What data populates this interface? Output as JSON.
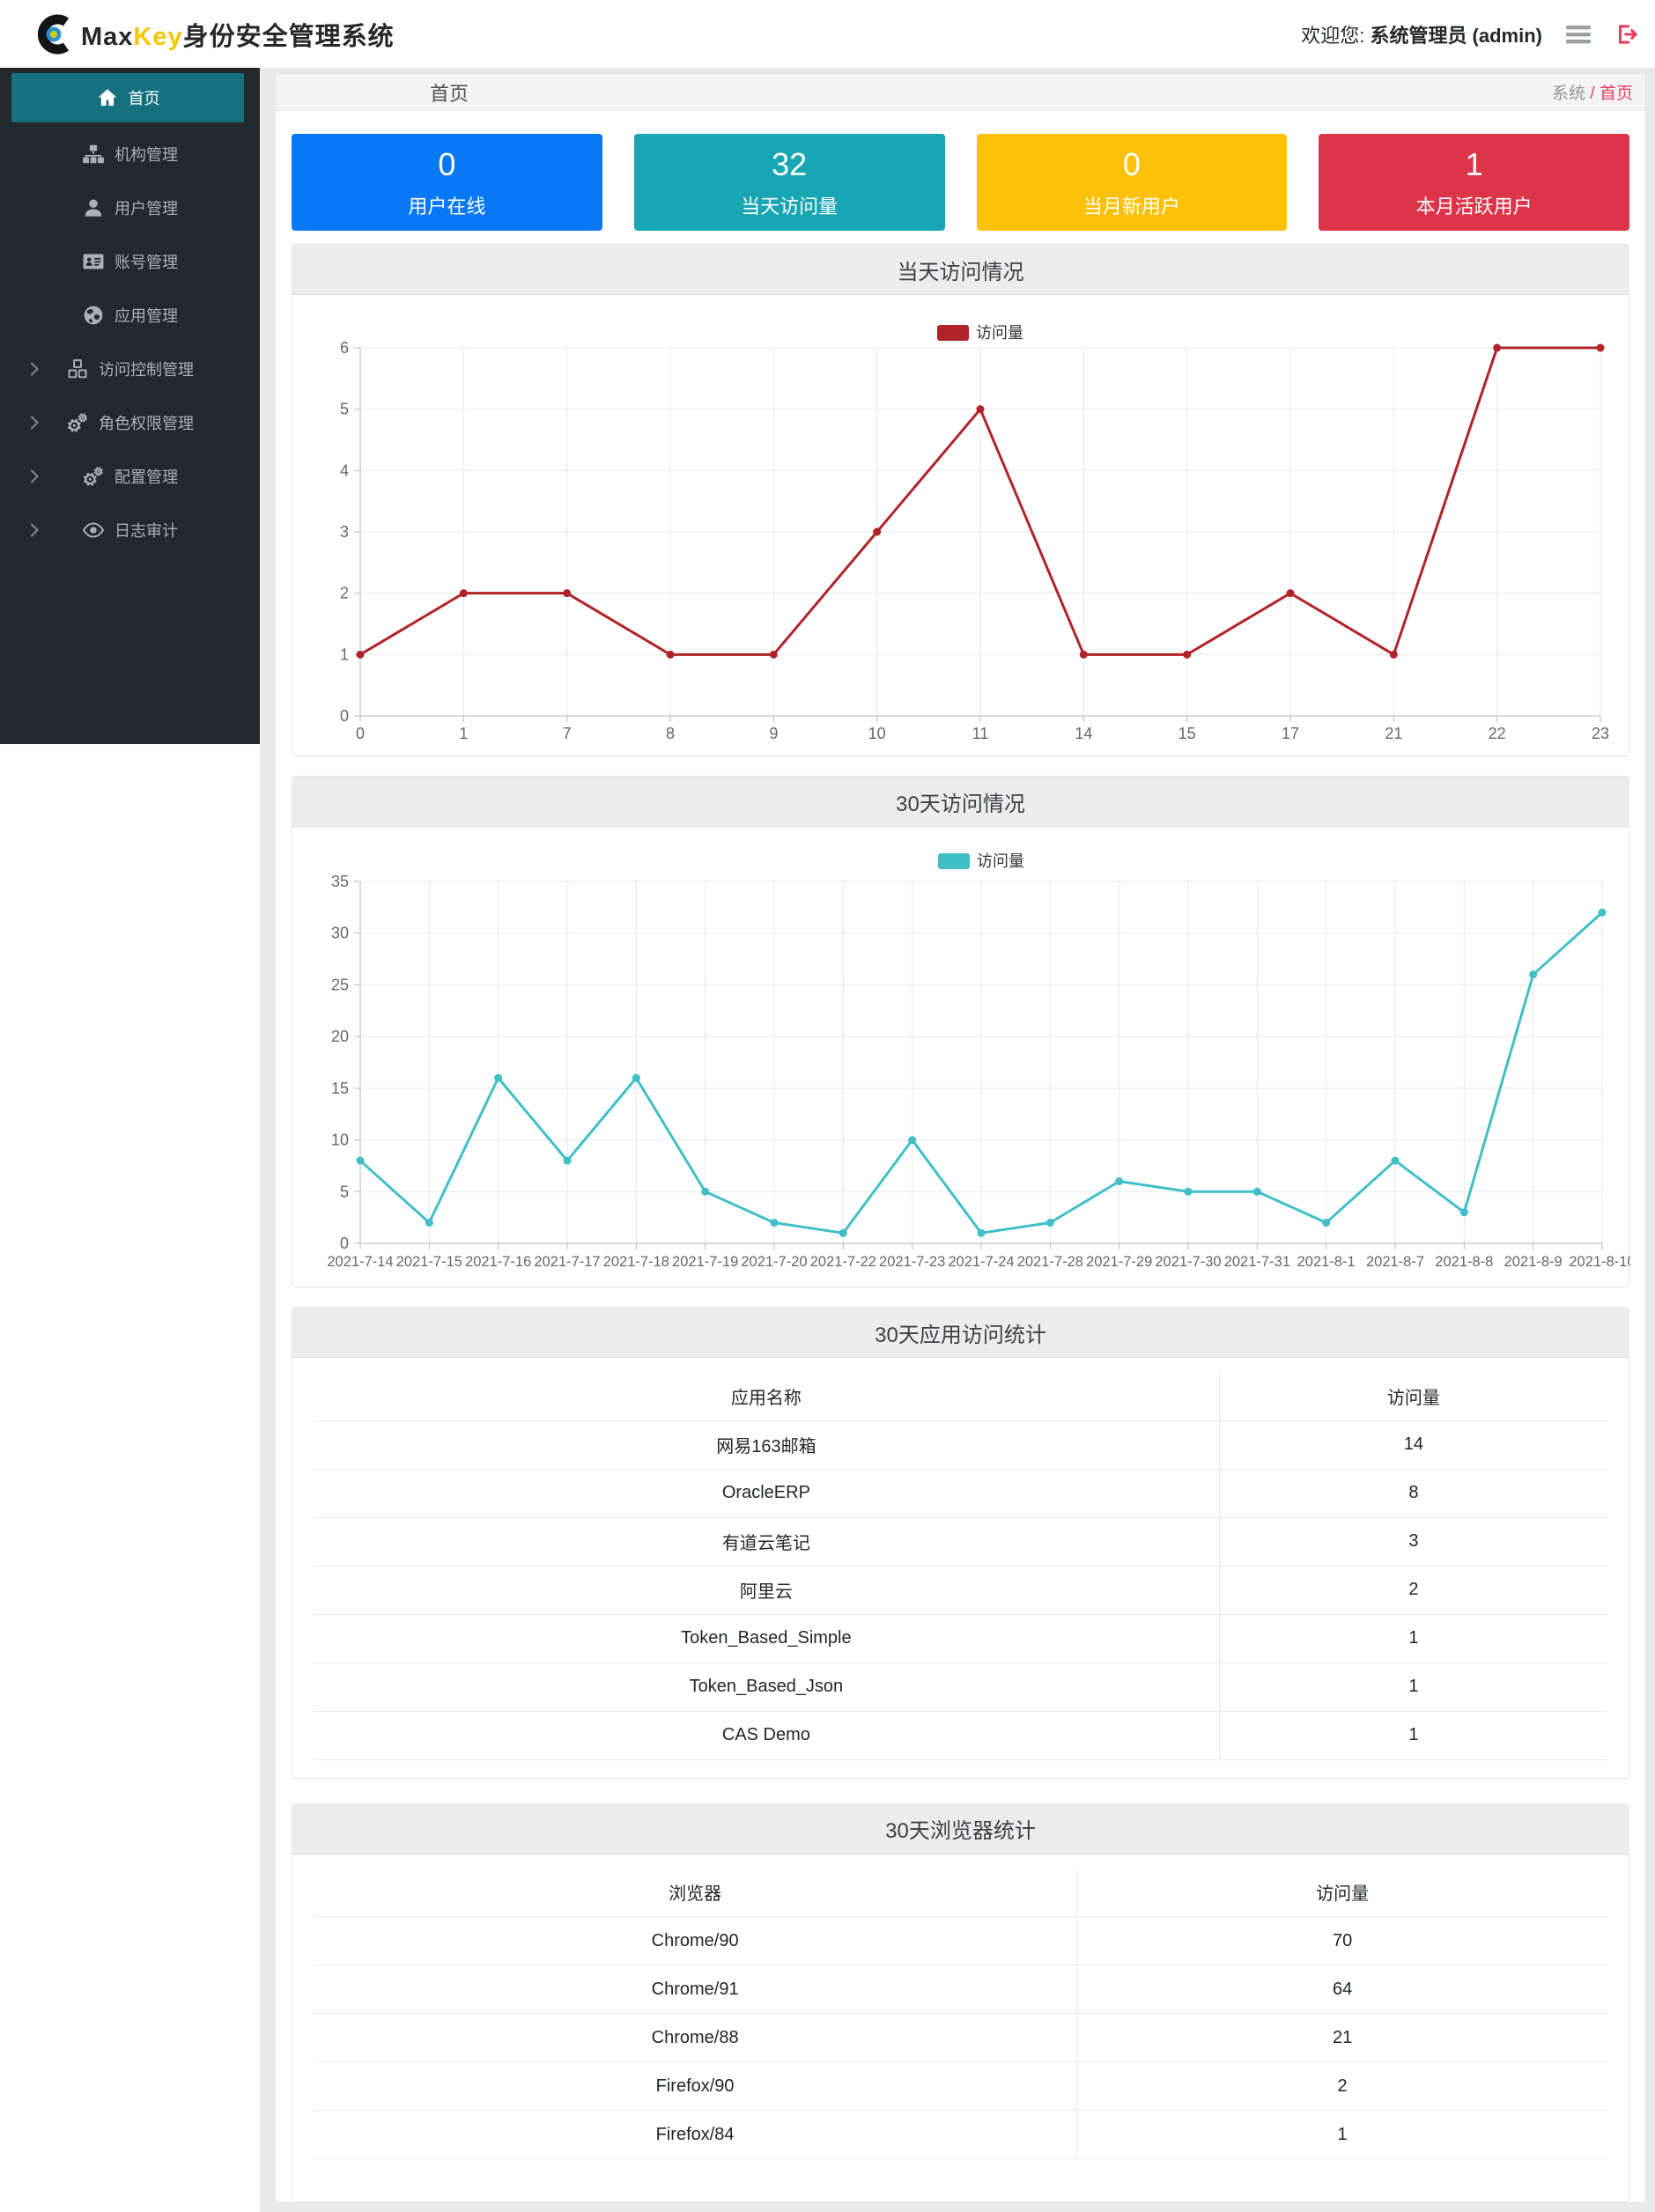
{
  "header": {
    "brand_max": "Max",
    "brand_key": "Key",
    "brand_suffix": "身份安全管理系统",
    "welcome_prefix": "欢迎您:",
    "welcome_user": "系统管理员 (admin)"
  },
  "sidebar": {
    "items": [
      {
        "key": "home",
        "label": "首页",
        "icon": "home-icon",
        "active": true,
        "expandable": false
      },
      {
        "key": "org",
        "label": "机构管理",
        "icon": "sitemap-icon",
        "active": false,
        "expandable": false
      },
      {
        "key": "user",
        "label": "用户管理",
        "icon": "user-icon",
        "active": false,
        "expandable": false
      },
      {
        "key": "account",
        "label": "账号管理",
        "icon": "id-card-icon",
        "active": false,
        "expandable": false
      },
      {
        "key": "app",
        "label": "应用管理",
        "icon": "globe-icon",
        "active": false,
        "expandable": false
      },
      {
        "key": "access",
        "label": "访问控制管理",
        "icon": "cubes-icon",
        "active": false,
        "expandable": true
      },
      {
        "key": "role",
        "label": "角色权限管理",
        "icon": "cogs-icon",
        "active": false,
        "expandable": true
      },
      {
        "key": "config",
        "label": "配置管理",
        "icon": "cogs-icon",
        "active": false,
        "expandable": true
      },
      {
        "key": "audit",
        "label": "日志审计",
        "icon": "eye-icon",
        "active": false,
        "expandable": true
      }
    ]
  },
  "breadcrumb": {
    "page_title": "首页",
    "path_root": "系统",
    "path_sep": "/",
    "path_current": "首页"
  },
  "stat_cards": [
    {
      "value": "0",
      "label": "用户在线",
      "color": "#0779f7"
    },
    {
      "value": "32",
      "label": "当天访问量",
      "color": "#18a5b4"
    },
    {
      "value": "0",
      "label": "当月新用户",
      "color": "#ffc107"
    },
    {
      "value": "1",
      "label": "本月活跃用户",
      "color": "#dc3448"
    }
  ],
  "chart_data": [
    {
      "type": "line",
      "title": "当天访问情况",
      "legend": "访问量",
      "color": "#b02329",
      "categories": [
        "0",
        "1",
        "7",
        "8",
        "9",
        "10",
        "11",
        "14",
        "15",
        "17",
        "21",
        "22",
        "23"
      ],
      "values": [
        1,
        2,
        2,
        1,
        1,
        3,
        5,
        1,
        1,
        2,
        1,
        6,
        6
      ],
      "xlabel": "",
      "ylabel": "",
      "ylim": [
        0,
        6
      ],
      "yticks": [
        0,
        1,
        2,
        3,
        4,
        5,
        6
      ],
      "grid": true,
      "legend_position": "top-center"
    },
    {
      "type": "line",
      "title": "30天访问情况",
      "legend": "访问量",
      "color": "#40bfc7",
      "categories": [
        "2021-7-14",
        "2021-7-15",
        "2021-7-16",
        "2021-7-17",
        "2021-7-18",
        "2021-7-19",
        "2021-7-20",
        "2021-7-22",
        "2021-7-23",
        "2021-7-24",
        "2021-7-28",
        "2021-7-29",
        "2021-7-30",
        "2021-7-31",
        "2021-8-1",
        "2021-8-7",
        "2021-8-8",
        "2021-8-9",
        "2021-8-10"
      ],
      "values": [
        8,
        2,
        16,
        8,
        16,
        5,
        2,
        1,
        10,
        1,
        2,
        6,
        5,
        5,
        2,
        8,
        3,
        26,
        32
      ],
      "xlabel": "",
      "ylabel": "",
      "ylim": [
        0,
        35
      ],
      "yticks": [
        0,
        5,
        10,
        15,
        20,
        25,
        30,
        35
      ],
      "grid": true,
      "legend_position": "top-center"
    }
  ],
  "tables": [
    {
      "title": "30天应用访问统计",
      "columns": [
        "应用名称",
        "访问量"
      ],
      "rows": [
        [
          "网易163邮箱",
          "14"
        ],
        [
          "OracleERP",
          "8"
        ],
        [
          "有道云笔记",
          "3"
        ],
        [
          "阿里云",
          "2"
        ],
        [
          "Token_Based_Simple",
          "1"
        ],
        [
          "Token_Based_Json",
          "1"
        ],
        [
          "CAS Demo",
          "1"
        ]
      ]
    },
    {
      "title": "30天浏览器统计",
      "columns": [
        "浏览器",
        "访问量"
      ],
      "rows": [
        [
          "Chrome/90",
          "70"
        ],
        [
          "Chrome/91",
          "64"
        ],
        [
          "Chrome/88",
          "21"
        ],
        [
          "Firefox/90",
          "2"
        ],
        [
          "Firefox/84",
          "1"
        ]
      ]
    }
  ],
  "colors": {
    "sidebar_bg": "#24292d",
    "sidebar_active": "#15707f",
    "accent_pink": "#e73d5f",
    "brand_yellow": "#f7c600",
    "panel_header_bg": "#ececec"
  }
}
